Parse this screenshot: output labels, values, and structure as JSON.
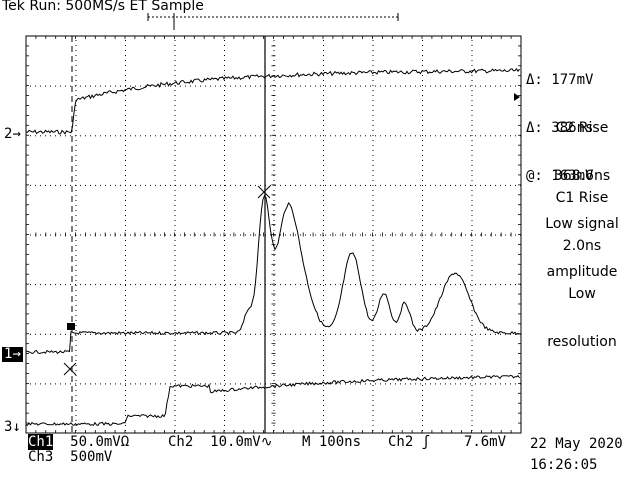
{
  "header": {
    "run_state": "Tek Run: 500MS/s ET Sample"
  },
  "channel_markers": {
    "ch2": "2",
    "ch1": "1",
    "ch3": "3"
  },
  "measurements": {
    "delta_v": "Δ: 177mV",
    "delta_t": "Δ: 386ns",
    "at_v": "@: 163mV",
    "c2_title": "C2 Rise",
    "c2_value": "368.6ns",
    "c2_note_1": "Low signal",
    "c2_note_2": "amplitude",
    "c1_title": "C1 Rise",
    "c1_value": "2.0ns",
    "c1_note_1": "Low",
    "c1_note_2": "resolution"
  },
  "footer": {
    "ch1_label": "Ch1",
    "ch1_scale": "50.0mVΩ",
    "ch2_label": "Ch2",
    "ch2_scale": "10.0mV",
    "ch2_suffix": "∿",
    "timebase_label": "M",
    "timebase_value": "100ns",
    "trigger_source": "Ch2",
    "trigger_slope": "ʃ",
    "trigger_level": "7.6mV",
    "ch3_label": "Ch3",
    "ch3_scale": "500mV",
    "date": "22 May 2020",
    "time": "16:26:05"
  }
}
